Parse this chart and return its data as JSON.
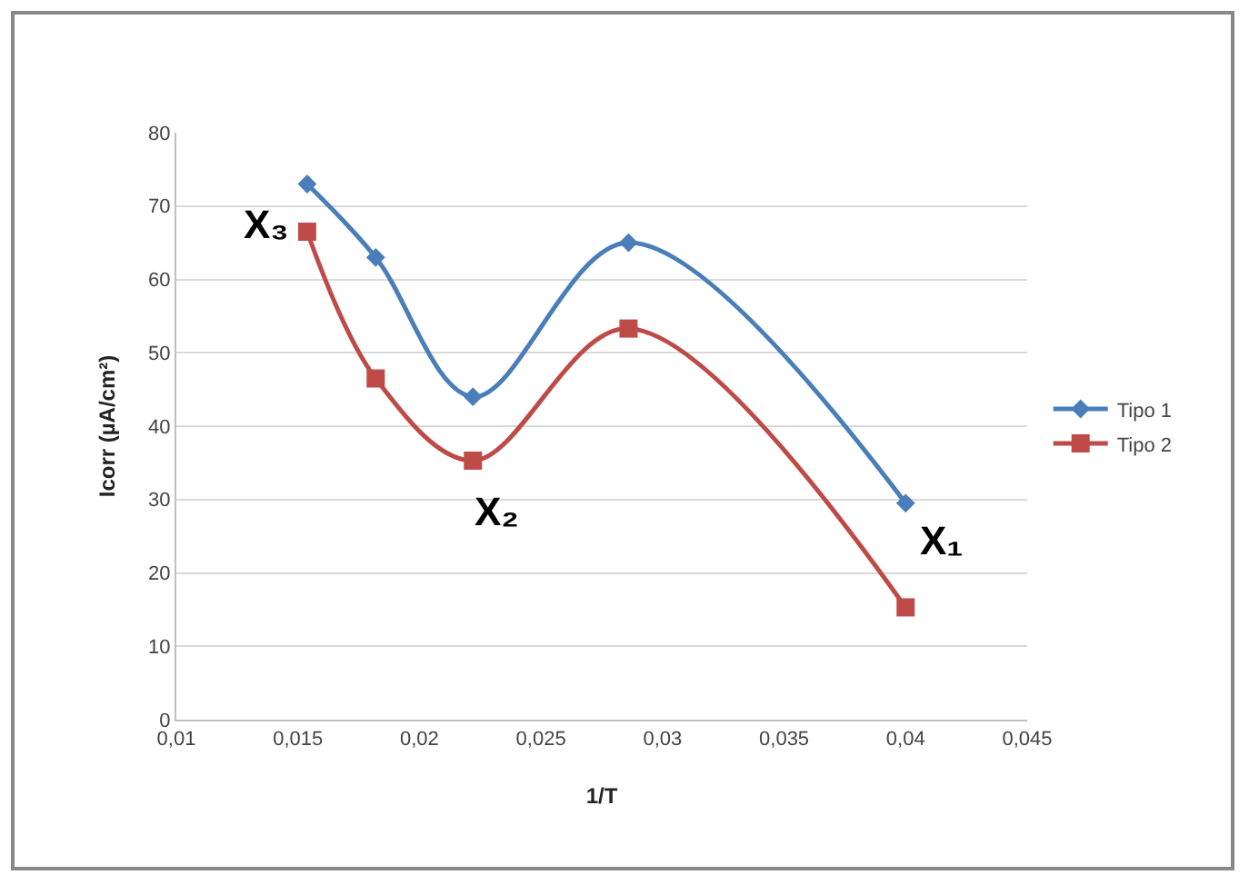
{
  "chart_data": {
    "type": "line",
    "xlabel": "1/T",
    "ylabel": "Icorr (µA/cm²)",
    "x": [
      0.01538,
      0.0182,
      0.0222,
      0.0286,
      0.04
    ],
    "series": [
      {
        "name": "Tipo 1",
        "color": "#4a7ebb",
        "marker": "diamond",
        "values": [
          73,
          63,
          44,
          65,
          29.5
        ]
      },
      {
        "name": "Tipo 2",
        "color": "#be4b48",
        "marker": "square",
        "values": [
          66.5,
          46.5,
          35.3,
          53.3,
          15.3
        ]
      }
    ],
    "xlim": [
      0.01,
      0.045
    ],
    "xticks": [
      {
        "value": 0.01,
        "label": "0,01"
      },
      {
        "value": 0.015,
        "label": "0,015"
      },
      {
        "value": 0.02,
        "label": "0,02"
      },
      {
        "value": 0.025,
        "label": "0,025"
      },
      {
        "value": 0.03,
        "label": "0,03"
      },
      {
        "value": 0.035,
        "label": "0,035"
      },
      {
        "value": 0.04,
        "label": "0,04"
      },
      {
        "value": 0.045,
        "label": "0,045"
      }
    ],
    "ylim": [
      0,
      80
    ],
    "yticks": [
      0,
      10,
      20,
      30,
      40,
      50,
      60,
      70,
      80
    ],
    "grid": "y",
    "legend": "right",
    "annotations": [
      "X₃",
      "X₂",
      "X₁"
    ]
  }
}
